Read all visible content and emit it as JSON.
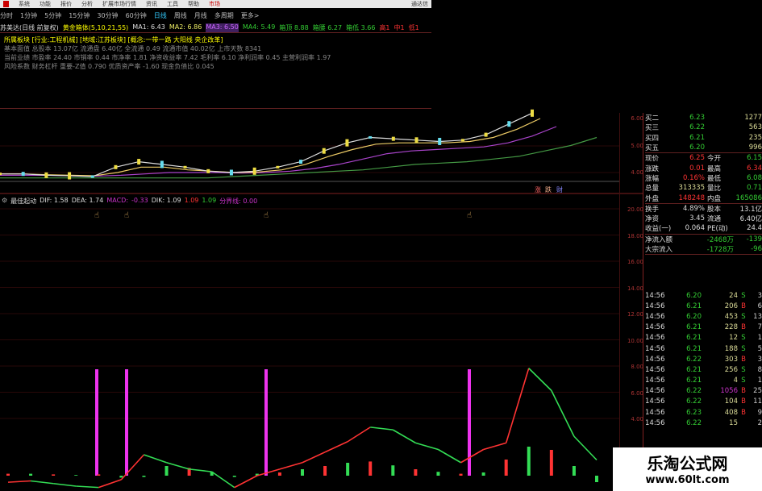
{
  "menubar": {
    "items": [
      "系统",
      "功能",
      "报价",
      "分析",
      "扩展市场行情",
      "资讯",
      "工具",
      "帮助"
    ],
    "active": "市场",
    "right": "通达信"
  },
  "periods": {
    "items": [
      "分时",
      "1分钟",
      "5分钟",
      "15分钟",
      "30分钟",
      "60分钟",
      "日线",
      "周线",
      "月线",
      "多周期",
      "更多>"
    ],
    "selected": "日线"
  },
  "title_row": {
    "stock": "苏美达(日线 前复权)",
    "indicator": "黄金箱体(5,10,21,55)",
    "ma1": "MA1: 6.43",
    "ma2": "MA2: 6.86",
    "ma3": "MA3: 6.50",
    "ma4": "MA4: 5.49",
    "t1": "箱顶 8.88",
    "t2": "箱腰 6.27",
    "t3": "箱低 3.66",
    "t4": "高1",
    "t5": "中1",
    "t6": "低1"
  },
  "info_lines": [
    "所属板块 [行业:工程机械] [地域:江苏板块] [概念:一带一路 大阳线 央企改革]",
    "基本面值 总股本 13.07亿 流通盘 6.40亿 全流通 0.49 流通市值 40.02亿 上市天数 8341",
    "当前业绩 市盈率 24.40 市销率 0.44 市净率 1.81 净资收益率 7.42 毛利率 6.10 净利润率 0.45 主营利润率 1.97",
    "风险系数 财务杠杆 重要-Z值 0.790 优质资产率 -1.60 现金负债比 0.045"
  ],
  "price_axis": [
    "6.00",
    "5.00",
    "4.00"
  ],
  "chart_tags": [
    "涨",
    "跌",
    "财"
  ],
  "indicator": {
    "name": "最佳起动",
    "dif": "DIF: 1.58",
    "dea": "DEA: 1.74",
    "macd_label": "MACD:",
    "macd": "-0.33",
    "dik_label": "DIK: 1.09",
    "v1": "1.09",
    "v2": "1.09",
    "fen": "分界线: 0.00"
  },
  "lower_axis": [
    "20.00",
    "18.00",
    "16.00",
    "14.00",
    "12.00",
    "10.00",
    "8.00",
    "6.00",
    "4.00"
  ],
  "quote": {
    "bids": [
      {
        "l": "买二",
        "p": "6.23",
        "v": "1277"
      },
      {
        "l": "买三",
        "p": "6.22",
        "v": "563"
      },
      {
        "l": "买四",
        "p": "6.21",
        "v": "235"
      },
      {
        "l": "买五",
        "p": "6.20",
        "v": "996"
      }
    ],
    "stats": [
      {
        "l": "现价",
        "v": "6.25",
        "l2": "今开",
        "v2": "6.15",
        "c": "#f33",
        "c2": "#3c3"
      },
      {
        "l": "涨跌",
        "v": "0.01",
        "l2": "最高",
        "v2": "6.34",
        "c": "#f33",
        "c2": "#f33"
      },
      {
        "l": "涨幅",
        "v": "0.16%",
        "l2": "最低",
        "v2": "6.08",
        "c": "#f33",
        "c2": "#3c3"
      },
      {
        "l": "总量",
        "v": "313335",
        "l2": "量比",
        "v2": "0.71",
        "c": "#dd9",
        "c2": "#3c3"
      },
      {
        "l": "外盘",
        "v": "148248",
        "l2": "内盘",
        "v2": "165086",
        "c": "#f33",
        "c2": "#3c3"
      }
    ],
    "stats2": [
      {
        "l": "换手",
        "v": "4.89%",
        "l2": "股本",
        "v2": "13.1亿"
      },
      {
        "l": "净资",
        "v": "3.45",
        "l2": "流通",
        "v2": "6.40亿"
      },
      {
        "l": "收益(一)",
        "v": "0.064",
        "l2": "PE(动)",
        "v2": "24.4"
      }
    ],
    "flows": [
      {
        "l": "净流入额",
        "v": "-2468万",
        "v2": "-139"
      },
      {
        "l": "大宗流入",
        "v": "-1728万",
        "v2": "-96"
      }
    ]
  },
  "ticks": [
    {
      "t": "14:56",
      "p": "6.20",
      "q": "24",
      "bs": "S",
      "x": "3"
    },
    {
      "t": "14:56",
      "p": "6.21",
      "q": "206",
      "bs": "B",
      "x": "6"
    },
    {
      "t": "14:56",
      "p": "6.20",
      "q": "453",
      "bs": "S",
      "x": "13"
    },
    {
      "t": "14:56",
      "p": "6.21",
      "q": "228",
      "bs": "B",
      "x": "7"
    },
    {
      "t": "14:56",
      "p": "6.21",
      "q": "12",
      "bs": "S",
      "x": "1"
    },
    {
      "t": "14:56",
      "p": "6.21",
      "q": "188",
      "bs": "S",
      "x": "5"
    },
    {
      "t": "14:56",
      "p": "6.22",
      "q": "303",
      "bs": "B",
      "x": "3"
    },
    {
      "t": "14:56",
      "p": "6.21",
      "q": "256",
      "bs": "S",
      "x": "8"
    },
    {
      "t": "14:56",
      "p": "6.21",
      "q": "4",
      "bs": "S",
      "x": "1"
    },
    {
      "t": "14:56",
      "p": "6.22",
      "q": "1056",
      "bs": "B",
      "x": "25"
    },
    {
      "t": "14:56",
      "p": "6.22",
      "q": "104",
      "bs": "B",
      "x": "11"
    },
    {
      "t": "14:56",
      "p": "6.23",
      "q": "408",
      "bs": "B",
      "x": "9"
    },
    {
      "t": "14:56",
      "p": "6.22",
      "q": "15",
      "bs": "",
      "x": "2"
    }
  ],
  "colors": {
    "up": "#ff3333",
    "down": "#33dd55",
    "signal": "#ee33ee",
    "ma_white": "#dddddd",
    "ma_yellow": "#eecc66",
    "ma_purple": "#aa44cc",
    "ma_green": "#449944",
    "grid": "#501010"
  },
  "series": {
    "ma_short": [
      3.95,
      3.95,
      3.9,
      3.88,
      3.85,
      4.2,
      4.4,
      4.3,
      4.2,
      4.05,
      4.0,
      4.05,
      4.2,
      4.4,
      4.8,
      5.1,
      5.3,
      5.25,
      5.2,
      5.15,
      5.2,
      5.4,
      5.8,
      6.2
    ],
    "ma_mid": [
      3.95,
      3.95,
      3.92,
      3.9,
      3.88,
      4.0,
      4.2,
      4.2,
      4.1,
      4.05,
      4.0,
      4.02,
      4.1,
      4.3,
      4.6,
      4.85,
      5.05,
      5.1,
      5.1,
      5.1,
      5.15,
      5.3,
      5.6,
      6.0
    ],
    "ma_long": [
      3.9,
      3.9,
      3.9,
      3.88,
      3.87,
      3.9,
      3.95,
      4.0,
      4.0,
      4.0,
      3.98,
      4.0,
      4.05,
      4.15,
      4.3,
      4.5,
      4.7,
      4.8,
      4.85,
      4.9,
      4.95,
      5.1,
      5.35,
      5.7
    ],
    "ma_55": [
      3.8,
      3.8,
      3.8,
      3.8,
      3.8,
      3.8,
      3.8,
      3.8,
      3.8,
      3.85,
      3.9,
      3.95,
      4.0,
      4.05,
      4.1,
      4.2,
      4.3,
      4.35,
      4.4,
      4.5,
      4.6,
      4.8,
      5.0,
      5.3
    ],
    "macd_line": [
      -0.5,
      -0.4,
      -0.6,
      -0.8,
      -0.9,
      -0.3,
      1.6,
      1.0,
      0.5,
      0.3,
      -0.9,
      0.0,
      0.5,
      1.0,
      1.8,
      2.6,
      3.7,
      3.5,
      2.5,
      2.0,
      1.0,
      2.0,
      2.5,
      8.2,
      6.5,
      3.0,
      1.2
    ],
    "macd_hist": [
      0.3,
      0.3,
      0.2,
      0.1,
      0.2,
      -0.3,
      -0.2,
      1.5,
      1.2,
      0.6,
      -0.2,
      0.3,
      0.5,
      1.0,
      1.5,
      2.0,
      2.2,
      1.6,
      1.0,
      0.6,
      0.3,
      0.5,
      2.5,
      4.5,
      4.0,
      1.5,
      -1.0
    ],
    "signals": [
      7,
      9,
      20,
      36
    ]
  }
}
